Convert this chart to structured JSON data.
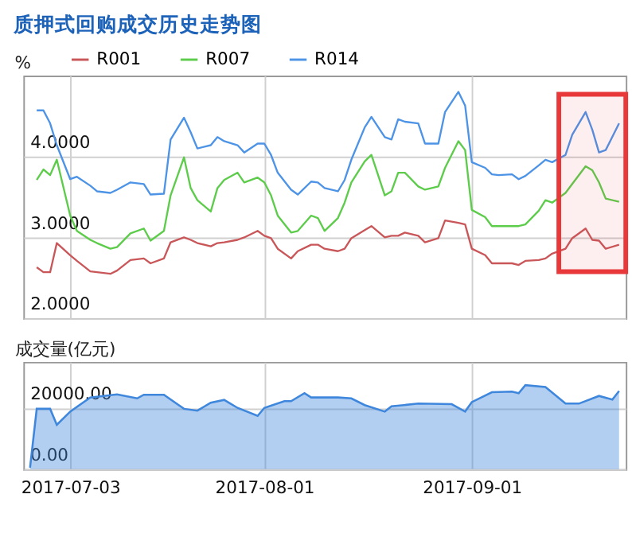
{
  "chart_data": [
    {
      "type": "line",
      "title": "质押式回购成交历史走势图",
      "ylabel": "%",
      "legend": "top",
      "grid": true,
      "tick_labels": "y",
      "x": [
        "2017-06-28",
        "2017-06-29",
        "2017-06-30",
        "2017-07-01",
        "2017-07-03",
        "2017-07-04",
        "2017-07-06",
        "2017-07-07",
        "2017-07-09",
        "2017-07-10",
        "2017-07-12",
        "2017-07-14",
        "2017-07-15",
        "2017-07-17",
        "2017-07-18",
        "2017-07-20",
        "2017-07-21",
        "2017-07-22",
        "2017-07-24",
        "2017-07-25",
        "2017-07-26",
        "2017-07-28",
        "2017-07-29",
        "2017-07-31",
        "2017-08-01",
        "2017-08-02",
        "2017-08-03",
        "2017-08-05",
        "2017-08-06",
        "2017-08-08",
        "2017-08-09",
        "2017-08-10",
        "2017-08-12",
        "2017-08-13",
        "2017-08-14",
        "2017-08-16",
        "2017-08-17",
        "2017-08-19",
        "2017-08-20",
        "2017-08-21",
        "2017-08-22",
        "2017-08-24",
        "2017-08-25",
        "2017-08-27",
        "2017-08-28",
        "2017-08-30",
        "2017-08-31",
        "2017-09-01",
        "2017-09-03",
        "2017-09-04",
        "2017-09-05",
        "2017-09-07",
        "2017-09-08",
        "2017-09-09",
        "2017-09-11",
        "2017-09-12",
        "2017-09-13",
        "2017-09-15",
        "2017-09-16",
        "2017-09-18",
        "2017-09-19",
        "2017-09-20",
        "2017-09-21",
        "2017-09-23"
      ],
      "series": [
        {
          "name": "R001",
          "color": "#c9575a",
          "values": [
            2.63,
            2.57,
            2.57,
            2.93,
            2.78,
            2.71,
            2.58,
            2.57,
            2.55,
            2.59,
            2.72,
            2.74,
            2.68,
            2.74,
            2.94,
            3.0,
            2.97,
            2.93,
            2.89,
            2.93,
            2.94,
            2.97,
            3.0,
            3.08,
            3.02,
            2.99,
            2.86,
            2.74,
            2.83,
            2.91,
            2.91,
            2.86,
            2.83,
            2.86,
            2.99,
            3.09,
            3.14,
            3.0,
            3.02,
            3.02,
            3.06,
            3.02,
            2.94,
            2.99,
            3.21,
            3.18,
            3.16,
            2.86,
            2.78,
            2.68,
            2.68,
            2.68,
            2.66,
            2.71,
            2.72,
            2.74,
            2.8,
            2.86,
            2.99,
            3.11,
            2.97,
            2.96,
            2.86,
            2.91
          ]
        },
        {
          "name": "R007",
          "color": "#5ccc4a",
          "values": [
            3.71,
            3.84,
            3.77,
            3.96,
            3.27,
            3.08,
            2.97,
            2.93,
            2.86,
            2.88,
            3.05,
            3.11,
            2.96,
            3.08,
            3.52,
            3.99,
            3.61,
            3.46,
            3.32,
            3.61,
            3.71,
            3.8,
            3.68,
            3.74,
            3.68,
            3.52,
            3.27,
            3.06,
            3.08,
            3.27,
            3.24,
            3.08,
            3.24,
            3.43,
            3.68,
            3.94,
            4.02,
            3.52,
            3.57,
            3.8,
            3.8,
            3.63,
            3.59,
            3.63,
            3.86,
            4.19,
            4.08,
            3.34,
            3.25,
            3.14,
            3.14,
            3.14,
            3.14,
            3.16,
            3.33,
            3.46,
            3.43,
            3.55,
            3.66,
            3.88,
            3.83,
            3.68,
            3.48,
            3.44
          ]
        },
        {
          "name": "R014",
          "color": "#4d93e6",
          "values": [
            4.57,
            4.57,
            4.41,
            4.14,
            3.72,
            3.75,
            3.64,
            3.57,
            3.55,
            3.59,
            3.68,
            3.66,
            3.53,
            3.54,
            4.21,
            4.48,
            4.3,
            4.1,
            4.14,
            4.24,
            4.19,
            4.14,
            4.05,
            4.16,
            4.16,
            4.02,
            3.8,
            3.59,
            3.53,
            3.69,
            3.68,
            3.61,
            3.57,
            3.71,
            3.96,
            4.36,
            4.49,
            4.24,
            4.21,
            4.46,
            4.43,
            4.41,
            4.16,
            4.16,
            4.55,
            4.8,
            4.63,
            3.93,
            3.86,
            3.78,
            3.77,
            3.78,
            3.72,
            3.76,
            3.89,
            3.96,
            3.93,
            4.02,
            4.27,
            4.55,
            4.33,
            4.05,
            4.08,
            4.41
          ]
        }
      ],
      "xlim": [
        "2017-06-26",
        "2017-09-24"
      ],
      "xticks": [
        "2017-07-03",
        "2017-08-01",
        "2017-09-01"
      ],
      "ylim": [
        2,
        5
      ],
      "yticks": [
        {
          "value": 2,
          "label": "2.0000"
        },
        {
          "value": 3,
          "label": "3.0000"
        },
        {
          "value": 4,
          "label": "4.0000"
        }
      ],
      "bands": [
        {
          "axis": "x",
          "from": "2017-09-14",
          "to": "2017-09-24",
          "color": "#e8383a"
        }
      ]
    },
    {
      "type": "area",
      "ylabel": "成交量(亿元)",
      "grid": true,
      "x": [
        "2017-06-27",
        "2017-06-28",
        "2017-06-30",
        "2017-07-01",
        "2017-07-03",
        "2017-07-06",
        "2017-07-10",
        "2017-07-13",
        "2017-07-14",
        "2017-07-17",
        "2017-07-20",
        "2017-07-22",
        "2017-07-24",
        "2017-07-26",
        "2017-07-28",
        "2017-07-31",
        "2017-08-01",
        "2017-08-04",
        "2017-08-05",
        "2017-08-07",
        "2017-08-08",
        "2017-08-12",
        "2017-08-14",
        "2017-08-16",
        "2017-08-19",
        "2017-08-20",
        "2017-08-24",
        "2017-08-29",
        "2017-08-31",
        "2017-09-01",
        "2017-09-04",
        "2017-09-07",
        "2017-09-08",
        "2017-09-09",
        "2017-09-12",
        "2017-09-15",
        "2017-09-17",
        "2017-09-20",
        "2017-09-22",
        "2017-09-23"
      ],
      "series": [
        {
          "color": "#3f87dc",
          "values": [
            500,
            19700,
            19700,
            14500,
            18800,
            23400,
            24400,
            23100,
            24300,
            24300,
            19700,
            19100,
            21700,
            22600,
            20000,
            17400,
            20000,
            22200,
            22200,
            24800,
            23400,
            23400,
            23100,
            20900,
            18800,
            20500,
            21400,
            21200,
            18800,
            21900,
            25100,
            25300,
            24800,
            27400,
            26800,
            21400,
            21400,
            23900,
            22700,
            25500
          ]
        }
      ],
      "xlim": [
        "2017-06-26",
        "2017-09-24"
      ],
      "xticks": [
        "2017-07-03",
        "2017-08-01",
        "2017-09-01"
      ],
      "ylim": [
        0,
        35000
      ],
      "yticks": [
        {
          "value": 0,
          "label": "0.00"
        },
        {
          "value": 20000,
          "label": "20000.00"
        }
      ]
    }
  ]
}
